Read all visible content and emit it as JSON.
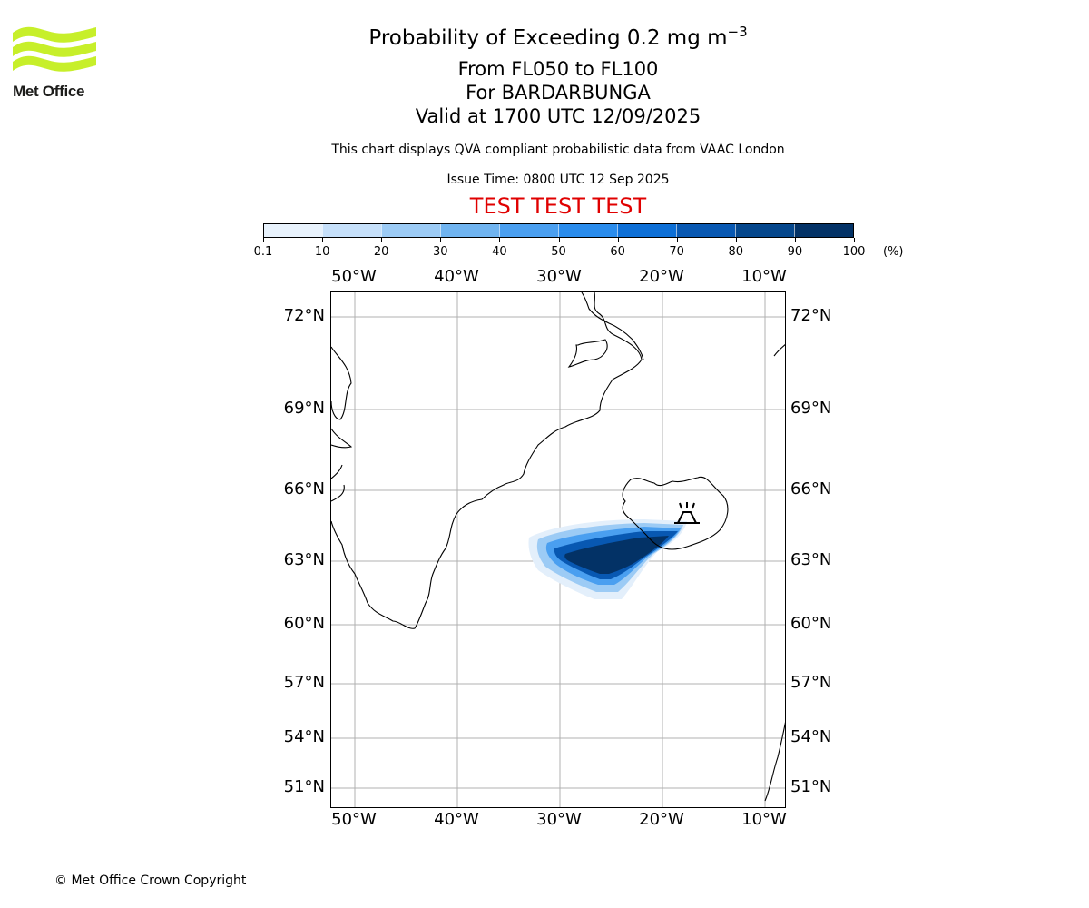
{
  "logo": {
    "text": "Met Office",
    "color": "#c7ef2a"
  },
  "title": {
    "main_prefix": "Probability of Exceeding 0.2 mg m",
    "main_sup": "−3",
    "levels": "From FL050 to FL100",
    "volcano": "For BARDARBUNGA",
    "valid": "Valid at 1700 UTC 12/09/2025"
  },
  "subtitle": "This chart displays QVA compliant probabilistic data from VAAC London",
  "issue_time": "Issue Time: 0800 UTC 12 Sep 2025",
  "test_banner": "TEST TEST TEST",
  "colorbar": {
    "ticks": [
      "0.1",
      "10",
      "20",
      "30",
      "40",
      "50",
      "60",
      "70",
      "80",
      "90",
      "100"
    ],
    "unit": "(%)",
    "colors": [
      "#e8f2fc",
      "#c6e0fa",
      "#9ccbf5",
      "#70b4f0",
      "#4a9ff0",
      "#2a8cec",
      "#0d6fd6",
      "#0858b2",
      "#05478c",
      "#033266"
    ]
  },
  "map": {
    "lon_labels": [
      "50°W",
      "40°W",
      "30°W",
      "20°W",
      "10°W"
    ],
    "lat_labels": [
      "72°N",
      "69°N",
      "66°N",
      "63°N",
      "60°N",
      "57°N",
      "54°N",
      "51°N"
    ],
    "volcano_icon": "volcano-icon"
  },
  "copyright": "© Met Office Crown Copyright"
}
